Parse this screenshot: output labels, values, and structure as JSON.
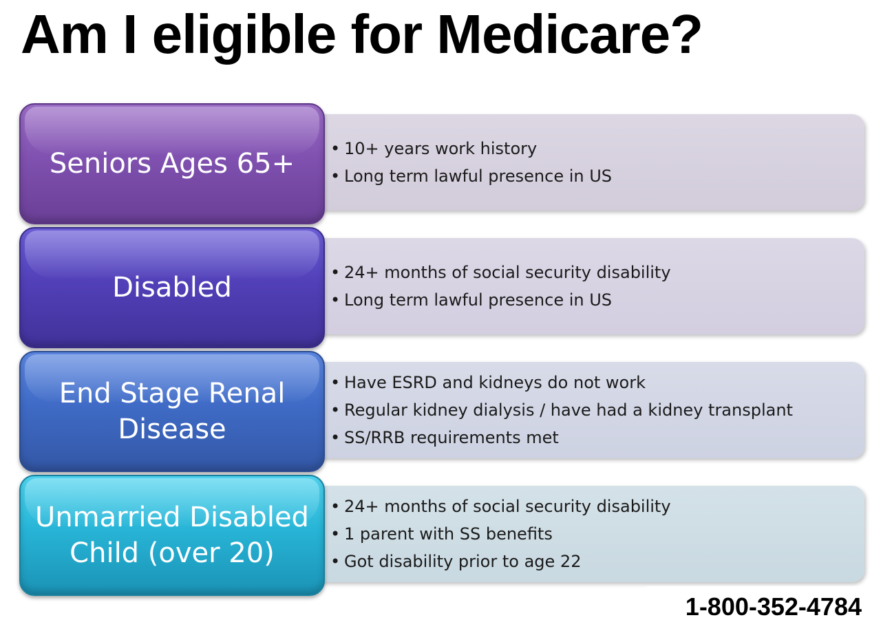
{
  "title": "Am I eligible for Medicare?",
  "groups": [
    {
      "category": "Seniors Ages 65+",
      "requirements": [
        "10+ years work history",
        "Long term lawful presence in US"
      ]
    },
    {
      "category": "Disabled",
      "requirements": [
        "24+ months of social security disability",
        "Long term lawful presence in US"
      ]
    },
    {
      "category": "End Stage Renal Disease",
      "requirements": [
        "Have ESRD and kidneys do not work",
        "Regular kidney dialysis / have had a kidney transplant",
        "SS/RRB requirements met"
      ]
    },
    {
      "category": "Unmarried Disabled Child (over 20)",
      "requirements": [
        "24+ months of social security disability",
        "1 parent with SS benefits",
        "Got disability prior to age 22"
      ]
    }
  ],
  "phone": "1-800-352-4784",
  "colors": {
    "seniors": "#8051b0",
    "disabled": "#5140b8",
    "esrd": "#3f6bc6",
    "child": "#27b4d6"
  }
}
